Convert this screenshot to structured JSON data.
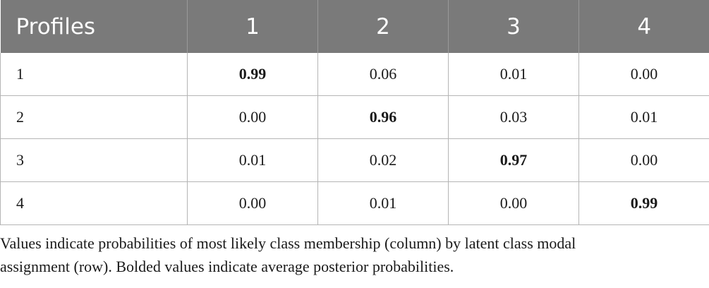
{
  "table": {
    "headers": [
      "Profiles",
      "1",
      "2",
      "3",
      "4"
    ],
    "rows": [
      {
        "label": "1",
        "cells": [
          "0.99",
          "0.06",
          "0.01",
          "0.00"
        ],
        "bold_index": 0
      },
      {
        "label": "2",
        "cells": [
          "0.00",
          "0.96",
          "0.03",
          "0.01"
        ],
        "bold_index": 1
      },
      {
        "label": "3",
        "cells": [
          "0.01",
          "0.02",
          "0.97",
          "0.00"
        ],
        "bold_index": 2
      },
      {
        "label": "4",
        "cells": [
          "0.00",
          "0.01",
          "0.00",
          "0.99"
        ],
        "bold_index": 3
      }
    ]
  },
  "footnote": {
    "line1": "Values indicate probabilities of most likely class membership (column) by latent class modal",
    "line2": "assignment (row). Bolded values indicate average posterior probabilities."
  }
}
